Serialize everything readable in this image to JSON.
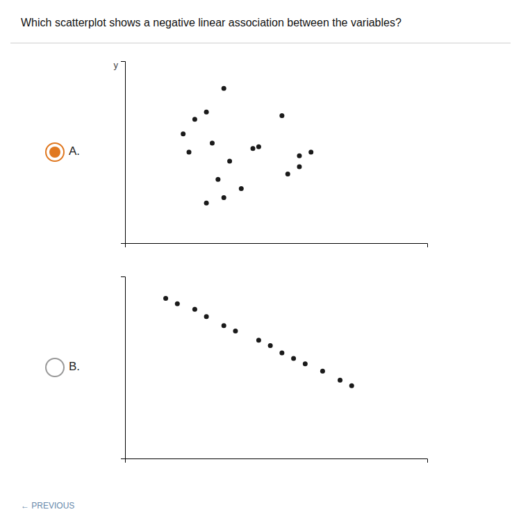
{
  "chart_data": [
    {
      "type": "scatter",
      "title": "Which scatterplot shows a negative linear association between the variables?",
      "subtitle": "A.",
      "ylabel": "y",
      "x": [
        1.5,
        1.2,
        1.0,
        0.8,
        2.5,
        1.3,
        0.9,
        1.6,
        2.0,
        2.1,
        3.0,
        2.8,
        1.4,
        1.8,
        2.6,
        2.8,
        1.5,
        1.2
      ],
      "values": [
        8.5,
        7.2,
        6.8,
        6.0,
        7.0,
        5.5,
        5.0,
        4.5,
        5.2,
        5.3,
        5.0,
        4.8,
        3.5,
        3.0,
        3.8,
        4.2,
        2.5,
        2.2
      ],
      "color": "#1a1a1a",
      "xlim": [
        -0.2,
        5
      ],
      "ylim": [
        0,
        10
      ],
      "tick_labels": false
    },
    {
      "type": "scatter",
      "subtitle": "B.",
      "x": [
        0.5,
        0.7,
        1.0,
        1.2,
        1.5,
        1.7,
        2.1,
        2.3,
        2.5,
        2.7,
        2.9,
        3.2,
        3.5,
        3.7
      ],
      "values": [
        8.8,
        8.5,
        8.2,
        7.8,
        7.3,
        7.0,
        6.5,
        6.2,
        5.8,
        5.5,
        5.2,
        4.8,
        4.3,
        4.0
      ],
      "color": "#1a1a1a",
      "xlim": [
        -0.2,
        5
      ],
      "ylim": [
        0,
        10
      ],
      "tick_labels": false,
      "annotations": [
        {
          "text": "← PREVIOUS"
        }
      ]
    }
  ]
}
